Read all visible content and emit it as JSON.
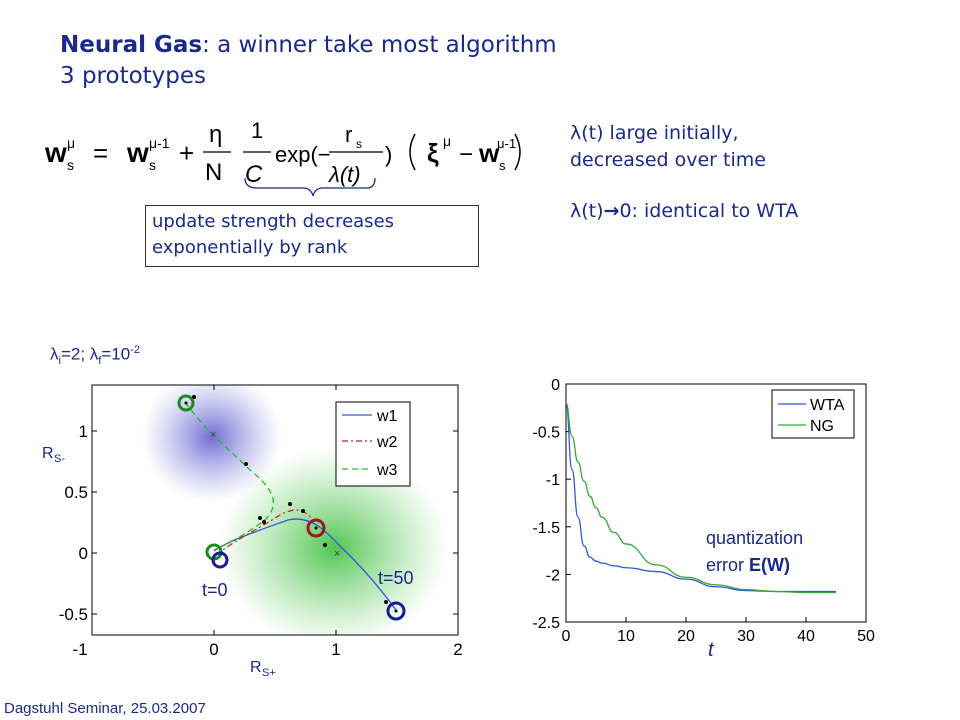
{
  "title": {
    "line1_bold": "Neural Gas",
    "line1_rest": ": a winner take most algorithm",
    "line2": "3 prototypes"
  },
  "formula": {
    "lhs": "w",
    "lhs_sub": "s",
    "lhs_sup": "μ",
    "eq": "=",
    "w2": "w",
    "w2_sub": "s",
    "w2_sup": "μ-1",
    "plus": "+",
    "eta": "η",
    "N": "N",
    "one": "1",
    "C": "C",
    "exp_text": "exp(−",
    "rs": "r",
    "rs_sub": "s",
    "lam_den": "λ(t)",
    "close": ")",
    "xi": "ξ",
    "xi_sup": "μ",
    "minus": "−",
    "w3": "w",
    "w3_sub": "s",
    "w3_sup": "μ-1"
  },
  "notes": {
    "line1": "λ(t) large initially,",
    "line2": "decreased over time",
    "line3_pre": "λ(t)",
    "line3_arrow": "→",
    "line3_post": "0: identical to WTA"
  },
  "box": {
    "line1": "update strength decreases",
    "line2": "exponentially by rank"
  },
  "lambda_label": {
    "pre": "λ",
    "sub_i": "i",
    "mid": "=2; λ",
    "sub_f": "f",
    "eq": "=10",
    "sup": "-2"
  },
  "left_plot": {
    "xticks": [
      "-1",
      "0",
      "1",
      "2"
    ],
    "yticks": [
      "1",
      "0.5",
      "0",
      "-0.5"
    ],
    "legend": [
      "w1",
      "w2",
      "w3"
    ],
    "label_rs_minus": "R",
    "label_rs_minus_sub": "S-",
    "label_rs_plus": "R",
    "label_rs_plus_sub": "S+",
    "label_t0": "t=0",
    "label_t50": "t=50",
    "colors": {
      "w1": "#3355dd",
      "w2": "#cc2222",
      "w3": "#22bb22"
    }
  },
  "chart_data": {
    "type": "line",
    "title": "",
    "xlabel": "t",
    "ylabel": "",
    "xlim": [
      0,
      50
    ],
    "ylim": [
      -2.5,
      0
    ],
    "xticks": [
      "0",
      "10",
      "20",
      "30",
      "40",
      "50"
    ],
    "yticks": [
      "0",
      "-0.5",
      "-1",
      "-1.5",
      "-2",
      "-2.5"
    ],
    "grid": false,
    "legend_position": "top-right",
    "x": [
      0,
      1,
      2,
      3,
      4,
      5,
      6,
      8,
      10,
      15,
      20,
      25,
      30,
      35,
      40,
      45
    ],
    "series": [
      {
        "name": "WTA",
        "color": "#3355dd",
        "values": [
          -0.2,
          -0.9,
          -1.4,
          -1.7,
          -1.82,
          -1.86,
          -1.88,
          -1.91,
          -1.93,
          -1.97,
          -2.05,
          -2.13,
          -2.17,
          -2.18,
          -2.18,
          -2.18
        ]
      },
      {
        "name": "NG",
        "color": "#33aa33",
        "values": [
          -0.2,
          -0.55,
          -0.82,
          -1.02,
          -1.18,
          -1.3,
          -1.4,
          -1.56,
          -1.68,
          -1.9,
          -2.03,
          -2.11,
          -2.16,
          -2.18,
          -2.19,
          -2.19
        ]
      }
    ]
  },
  "right_plot_annotation": {
    "line1": "quantization",
    "line2_pre": "error ",
    "line2_bold": "E(W)"
  },
  "footer": "Dagstuhl Seminar, 25.03.2007"
}
